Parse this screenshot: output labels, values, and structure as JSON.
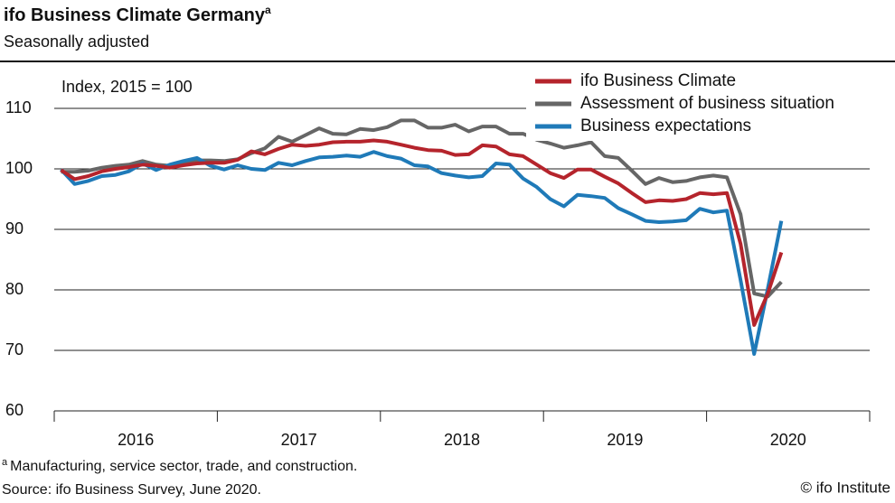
{
  "chart_data": {
    "type": "line",
    "title": "ifo Business Climate Germany",
    "title_marker": "a",
    "subtitle": "Seasonally adjusted",
    "annotation": "Index, 2015 = 100",
    "footnote_marker": "a",
    "footnote": "Manufacturing, service sector, trade, and construction.",
    "source": "Source: ifo Business Survey, June 2020.",
    "credit": "© ifo Institute",
    "year_groups": [
      "2016",
      "2017",
      "2018",
      "2019",
      "2020"
    ],
    "categories": [
      null,
      null,
      null,
      null,
      null,
      null,
      null,
      null,
      null,
      null,
      null,
      null,
      null,
      null,
      null,
      null,
      null,
      null,
      null,
      null,
      null,
      null,
      null,
      null,
      null,
      null,
      null,
      null,
      null,
      null,
      null,
      null,
      null,
      null,
      null,
      null,
      null,
      null,
      null,
      null,
      null,
      null,
      null,
      null,
      null,
      null,
      null,
      null,
      null,
      null,
      null,
      null,
      null,
      null
    ],
    "ylim": [
      60,
      110
    ],
    "yticks": [
      60,
      70,
      80,
      90,
      100,
      110
    ],
    "grid": true,
    "legend": "top-right",
    "series": [
      {
        "name": "ifo Business Climate",
        "color": "#b5242c",
        "values": [
          99.8,
          98.3,
          98.8,
          99.6,
          100.0,
          100.3,
          100.7,
          100.5,
          100.2,
          100.6,
          100.9,
          101.0,
          101.0,
          101.5,
          102.9,
          102.4,
          103.3,
          104.0,
          103.8,
          104.0,
          104.4,
          104.5,
          104.5,
          104.7,
          104.5,
          104.0,
          103.5,
          103.1,
          103.0,
          102.3,
          102.4,
          103.9,
          103.7,
          102.4,
          102.1,
          100.7,
          99.3,
          98.5,
          99.9,
          99.9,
          98.7,
          97.6,
          96.0,
          94.5,
          94.8,
          94.7,
          95.0,
          96.0,
          95.8,
          96.0,
          87.6,
          74.2,
          79.4,
          86.2
        ]
      },
      {
        "name": "Assessment of business situation",
        "color": "#666666",
        "values": [
          99.5,
          99.5,
          99.7,
          100.2,
          100.5,
          100.7,
          101.3,
          100.7,
          100.5,
          100.8,
          101.4,
          101.4,
          101.3,
          101.6,
          102.6,
          103.4,
          105.3,
          104.5,
          105.6,
          106.7,
          105.8,
          105.7,
          106.6,
          106.4,
          106.9,
          108.0,
          108.0,
          106.8,
          106.8,
          107.3,
          106.2,
          107.0,
          107.0,
          105.8,
          105.8,
          104.8,
          104.2,
          103.5,
          103.9,
          104.4,
          102.1,
          101.8,
          99.7,
          97.5,
          98.5,
          97.8,
          98.0,
          98.6,
          98.9,
          98.6,
          92.5,
          79.4,
          78.9,
          81.3
        ]
      },
      {
        "name": "Business expectations",
        "color": "#1f7ab8",
        "values": [
          99.9,
          97.5,
          98.0,
          98.8,
          99.0,
          99.6,
          100.9,
          99.8,
          100.7,
          101.3,
          101.8,
          100.5,
          99.9,
          100.6,
          100.0,
          99.8,
          101.0,
          100.6,
          101.3,
          101.9,
          102.0,
          102.2,
          102.0,
          102.8,
          102.1,
          101.7,
          100.6,
          100.4,
          99.3,
          98.9,
          98.6,
          98.8,
          100.9,
          100.7,
          98.4,
          97.0,
          95.0,
          93.8,
          95.7,
          95.5,
          95.2,
          93.5,
          92.5,
          91.4,
          91.2,
          91.3,
          91.5,
          93.4,
          92.8,
          93.1,
          81.6,
          69.4,
          80.2,
          91.4
        ]
      }
    ]
  }
}
